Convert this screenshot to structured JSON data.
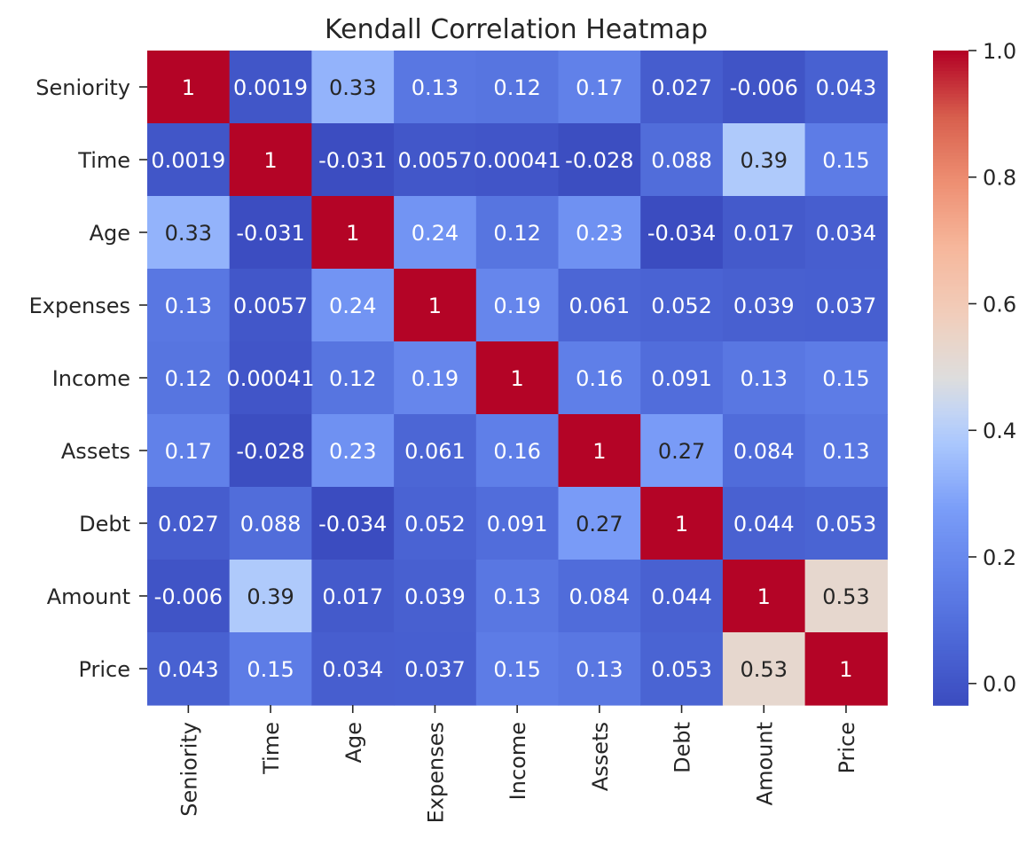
{
  "chart_data": {
    "type": "heatmap",
    "title": "Kendall Correlation Heatmap",
    "rows": [
      "Seniority",
      "Time",
      "Age",
      "Expenses",
      "Income",
      "Assets",
      "Debt",
      "Amount",
      "Price"
    ],
    "columns": [
      "Seniority",
      "Time",
      "Age",
      "Expenses",
      "Income",
      "Assets",
      "Debt",
      "Amount",
      "Price"
    ],
    "values": [
      [
        1,
        0.0019,
        0.33,
        0.13,
        0.12,
        0.17,
        0.027,
        -0.006,
        0.043
      ],
      [
        0.0019,
        1,
        -0.031,
        0.0057,
        0.00041,
        -0.028,
        0.088,
        0.39,
        0.15
      ],
      [
        0.33,
        -0.031,
        1,
        0.24,
        0.12,
        0.23,
        -0.034,
        0.017,
        0.034
      ],
      [
        0.13,
        0.0057,
        0.24,
        1,
        0.19,
        0.061,
        0.052,
        0.039,
        0.037
      ],
      [
        0.12,
        0.00041,
        0.12,
        0.19,
        1,
        0.16,
        0.091,
        0.13,
        0.15
      ],
      [
        0.17,
        -0.028,
        0.23,
        0.061,
        0.16,
        1,
        0.27,
        0.084,
        0.13
      ],
      [
        0.027,
        0.088,
        -0.034,
        0.052,
        0.091,
        0.27,
        1,
        0.044,
        0.053
      ],
      [
        -0.006,
        0.39,
        0.017,
        0.039,
        0.13,
        0.084,
        0.044,
        1,
        0.53
      ],
      [
        0.043,
        0.15,
        0.034,
        0.037,
        0.15,
        0.13,
        0.053,
        0.53,
        1
      ]
    ],
    "annotations": [
      [
        "1",
        "0.0019",
        "0.33",
        "0.13",
        "0.12",
        "0.17",
        "0.027",
        "-0.006",
        "0.043"
      ],
      [
        "0.0019",
        "1",
        "-0.031",
        "0.0057",
        "0.00041",
        "-0.028",
        "0.088",
        "0.39",
        "0.15"
      ],
      [
        "0.33",
        "-0.031",
        "1",
        "0.24",
        "0.12",
        "0.23",
        "-0.034",
        "0.017",
        "0.034"
      ],
      [
        "0.13",
        "0.0057",
        "0.24",
        "1",
        "0.19",
        "0.061",
        "0.052",
        "0.039",
        "0.037"
      ],
      [
        "0.12",
        "0.00041",
        "0.12",
        "0.19",
        "1",
        "0.16",
        "0.091",
        "0.13",
        "0.15"
      ],
      [
        "0.17",
        "-0.028",
        "0.23",
        "0.061",
        "0.16",
        "1",
        "0.27",
        "0.084",
        "0.13"
      ],
      [
        "0.027",
        "0.088",
        "-0.034",
        "0.052",
        "0.091",
        "0.27",
        "1",
        "0.044",
        "0.053"
      ],
      [
        "-0.006",
        "0.39",
        "0.017",
        "0.039",
        "0.13",
        "0.084",
        "0.044",
        "1",
        "0.53"
      ],
      [
        "0.043",
        "0.15",
        "0.034",
        "0.037",
        "0.15",
        "0.13",
        "0.053",
        "0.53",
        "1"
      ]
    ],
    "colormap": "coolwarm",
    "vmin": -0.034,
    "vmax": 1,
    "colorbar": {
      "ticks": [
        0.0,
        0.2,
        0.4,
        0.6,
        0.8,
        1.0
      ],
      "tick_labels": [
        "0.0",
        "0.2",
        "0.4",
        "0.6",
        "0.8",
        "1.0"
      ]
    },
    "text_colors": {
      "light": "#ffffff",
      "dark": "#262626"
    }
  }
}
